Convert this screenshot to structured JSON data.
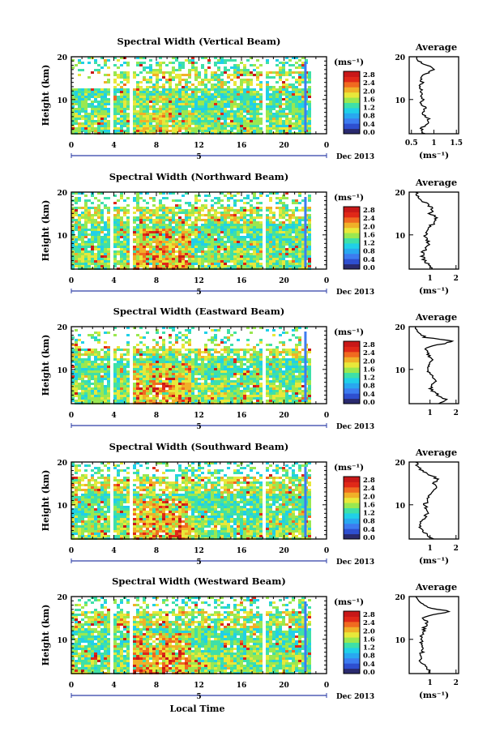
{
  "chart_data": [
    {
      "type": "heatmap",
      "title": "Spectral Width (Vertical Beam)",
      "ylabel": "Height (km)",
      "xlim": [
        0,
        24
      ],
      "ylim": [
        2,
        20
      ],
      "x_ticks": [
        "0",
        "4",
        "8",
        "12",
        "16",
        "20",
        "0"
      ],
      "y_ticks": [
        "20",
        "10"
      ],
      "date_marker": "5",
      "date_label": "Dec 2013",
      "colorbar": {
        "unit": "(ms⁻¹)",
        "ticks": [
          "2.8",
          "2.4",
          "2.0",
          "1.6",
          "1.2",
          "0.8",
          "0.4",
          "0.0"
        ]
      },
      "average_profile": {
        "title": "Average",
        "xlabel": "(ms⁻¹)",
        "xlim": [
          0.45,
          1.55
        ],
        "x_ticks": [
          "0.5",
          "1",
          "1.5"
        ],
        "y_ticks": [
          "20",
          "10"
        ],
        "points": [
          [
            0.78,
            2
          ],
          [
            0.72,
            3
          ],
          [
            0.8,
            4
          ],
          [
            0.9,
            5
          ],
          [
            0.82,
            6
          ],
          [
            0.74,
            7
          ],
          [
            0.8,
            8
          ],
          [
            0.72,
            9
          ],
          [
            0.78,
            10
          ],
          [
            0.7,
            11
          ],
          [
            0.74,
            12
          ],
          [
            0.68,
            13
          ],
          [
            0.74,
            14
          ],
          [
            0.7,
            15
          ],
          [
            0.82,
            16
          ],
          [
            1.0,
            17
          ],
          [
            0.86,
            18
          ],
          [
            0.66,
            19
          ],
          [
            0.62,
            20
          ]
        ]
      }
    },
    {
      "type": "heatmap",
      "title": "Spectral Width (Northward Beam)",
      "ylabel": "Height (km)",
      "xlim": [
        0,
        24
      ],
      "ylim": [
        2,
        20
      ],
      "x_ticks": [
        "0",
        "4",
        "8",
        "12",
        "16",
        "20",
        "0"
      ],
      "y_ticks": [
        "20",
        "10"
      ],
      "date_marker": "5",
      "date_label": "Dec 2013",
      "colorbar": {
        "unit": "(ms⁻¹)",
        "ticks": [
          "2.8",
          "2.4",
          "2.0",
          "1.6",
          "1.2",
          "0.8",
          "0.4",
          "0.0"
        ]
      },
      "average_profile": {
        "title": "Average",
        "xlabel": "(ms⁻¹)",
        "xlim": [
          0.2,
          2.1
        ],
        "x_ticks": [
          "1",
          "2"
        ],
        "y_ticks": [
          "20",
          "10"
        ],
        "points": [
          [
            1.05,
            2
          ],
          [
            0.95,
            3
          ],
          [
            0.8,
            4
          ],
          [
            0.7,
            5
          ],
          [
            0.72,
            6
          ],
          [
            0.85,
            7
          ],
          [
            0.95,
            8
          ],
          [
            0.9,
            9
          ],
          [
            0.82,
            10
          ],
          [
            0.9,
            11
          ],
          [
            1.0,
            12
          ],
          [
            1.2,
            13
          ],
          [
            1.25,
            14
          ],
          [
            1.0,
            15
          ],
          [
            1.1,
            16
          ],
          [
            0.95,
            17
          ],
          [
            0.7,
            18
          ],
          [
            0.5,
            19
          ],
          [
            0.45,
            20
          ]
        ]
      }
    },
    {
      "type": "heatmap",
      "title": "Spectral Width (Eastward Beam)",
      "ylabel": "Height (km)",
      "xlim": [
        0,
        24
      ],
      "ylim": [
        2,
        20
      ],
      "x_ticks": [
        "0",
        "4",
        "8",
        "12",
        "16",
        "20",
        "0"
      ],
      "y_ticks": [
        "20",
        "10"
      ],
      "date_marker": "5",
      "date_label": "Dec 2013",
      "colorbar": {
        "unit": "(ms⁻¹)",
        "ticks": [
          "2.8",
          "2.4",
          "2.0",
          "1.6",
          "1.2",
          "0.8",
          "0.4",
          "0.0"
        ]
      },
      "average_profile": {
        "title": "Average",
        "xlabel": "",
        "xlim": [
          0.2,
          2.1
        ],
        "x_ticks": [
          "1",
          "2"
        ],
        "y_ticks": [
          "20",
          "10"
        ],
        "points": [
          [
            1.4,
            2
          ],
          [
            1.6,
            3
          ],
          [
            1.3,
            4
          ],
          [
            1.1,
            5
          ],
          [
            1.0,
            6
          ],
          [
            1.2,
            7
          ],
          [
            1.1,
            8
          ],
          [
            1.0,
            9
          ],
          [
            0.9,
            10
          ],
          [
            1.0,
            11
          ],
          [
            1.1,
            12
          ],
          [
            1.0,
            13
          ],
          [
            0.9,
            14
          ],
          [
            0.8,
            15
          ],
          [
            1.5,
            16
          ],
          [
            1.9,
            16.6
          ],
          [
            0.8,
            17.5
          ],
          [
            0.6,
            18.5
          ],
          [
            0.45,
            20
          ]
        ]
      }
    },
    {
      "type": "heatmap",
      "title": "Spectral Width (Southward Beam)",
      "ylabel": "Height (km)",
      "xlim": [
        0,
        24
      ],
      "ylim": [
        2,
        20
      ],
      "x_ticks": [
        "0",
        "4",
        "8",
        "12",
        "16",
        "20",
        "0"
      ],
      "y_ticks": [
        "20",
        "10"
      ],
      "date_marker": "5",
      "date_label": "Dec 2013",
      "colorbar": {
        "unit": "(ms⁻¹)",
        "ticks": [
          "2.8",
          "2.4",
          "2.0",
          "1.6",
          "1.2",
          "0.8",
          "0.4",
          "0.0"
        ]
      },
      "average_profile": {
        "title": "Average",
        "xlabel": "(ms⁻¹)",
        "xlim": [
          0.2,
          2.1
        ],
        "x_ticks": [
          "1",
          "2"
        ],
        "y_ticks": [
          "20",
          "10"
        ],
        "points": [
          [
            1.1,
            2
          ],
          [
            0.9,
            3
          ],
          [
            0.7,
            4
          ],
          [
            0.6,
            5
          ],
          [
            0.65,
            6
          ],
          [
            0.8,
            7
          ],
          [
            0.9,
            8
          ],
          [
            0.85,
            9
          ],
          [
            0.8,
            10
          ],
          [
            0.9,
            11
          ],
          [
            0.95,
            12
          ],
          [
            1.1,
            13
          ],
          [
            1.2,
            14
          ],
          [
            1.1,
            15
          ],
          [
            1.3,
            16
          ],
          [
            1.0,
            17
          ],
          [
            0.7,
            18
          ],
          [
            0.5,
            19
          ],
          [
            0.45,
            20
          ]
        ]
      }
    },
    {
      "type": "heatmap",
      "title": "Spectral Width (Westward Beam)",
      "ylabel": "Height (km)",
      "xlim": [
        0,
        24
      ],
      "ylim": [
        2,
        20
      ],
      "x_ticks": [
        "0",
        "4",
        "8",
        "12",
        "16",
        "20",
        "0"
      ],
      "y_ticks": [
        "20",
        "10"
      ],
      "date_marker": "5",
      "date_label": "Dec 2013",
      "colorbar": {
        "unit": "(ms⁻¹)",
        "ticks": [
          "2.8",
          "2.4",
          "2.0",
          "1.6",
          "1.2",
          "0.8",
          "0.4",
          "0.0"
        ]
      },
      "average_profile": {
        "title": "Average",
        "xlabel": "(ms⁻¹)",
        "xlim": [
          0.2,
          2.1
        ],
        "x_ticks": [
          "1",
          "2"
        ],
        "y_ticks": [
          "20",
          "10"
        ],
        "points": [
          [
            1.0,
            2
          ],
          [
            0.9,
            3
          ],
          [
            0.75,
            4
          ],
          [
            0.6,
            5
          ],
          [
            0.6,
            6
          ],
          [
            0.7,
            7
          ],
          [
            0.75,
            8
          ],
          [
            0.7,
            9
          ],
          [
            0.65,
            10
          ],
          [
            0.7,
            11
          ],
          [
            0.75,
            12
          ],
          [
            0.8,
            13
          ],
          [
            0.9,
            14
          ],
          [
            0.7,
            15
          ],
          [
            1.3,
            16
          ],
          [
            1.8,
            16.5
          ],
          [
            0.9,
            17.5
          ],
          [
            0.6,
            18.5
          ],
          [
            0.45,
            20
          ]
        ]
      }
    }
  ],
  "shared": {
    "xlabel": "Local Time"
  },
  "colormap": [
    "#2a2a6e",
    "#2e4fd0",
    "#3d7cf0",
    "#29a8f0",
    "#20d0e8",
    "#3ee0a8",
    "#9ae850",
    "#e8e83a",
    "#f0b028",
    "#f06a20",
    "#e02818",
    "#c81818"
  ]
}
